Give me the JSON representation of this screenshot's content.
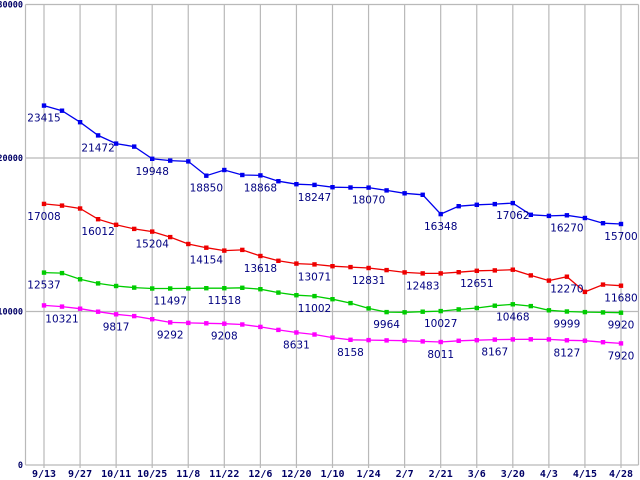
{
  "chart_data": {
    "type": "line",
    "title": "",
    "xlabel": "",
    "ylabel": "",
    "ylim": [
      0,
      30000
    ],
    "grid": "both",
    "legend": "none",
    "x_tick_labels": [
      "9/13",
      "9/27",
      "10/11",
      "10/25",
      "11/8",
      "11/22",
      "12/6",
      "12/20",
      "1/10",
      "1/24",
      "2/7",
      "2/21",
      "3/6",
      "3/20",
      "4/3",
      "4/15",
      "4/28"
    ],
    "points_between_ticks": 1,
    "y_ticks": [
      {
        "value": 0,
        "label": "0"
      },
      {
        "value": 10000,
        "label": "10000"
      },
      {
        "value": 20000,
        "label": "20000"
      },
      {
        "value": 30000,
        "label": "30000"
      }
    ],
    "series": [
      {
        "name": "series-blue",
        "color": "#0000ee",
        "values": [
          23415,
          23080,
          22330,
          21472,
          20940,
          20740,
          19948,
          19830,
          19780,
          18850,
          19220,
          18890,
          18868,
          18490,
          18290,
          18247,
          18100,
          18075,
          18070,
          17890,
          17700,
          17600,
          16348,
          16860,
          16950,
          17000,
          17062,
          16300,
          16230,
          16270,
          16090,
          15750,
          15700
        ],
        "point_labels": [
          [
            0,
            "23415"
          ],
          [
            3,
            "21472"
          ],
          [
            6,
            "19948"
          ],
          [
            9,
            "18850"
          ],
          [
            12,
            "18868"
          ],
          [
            15,
            "18247"
          ],
          [
            18,
            "18070"
          ],
          [
            22,
            "16348"
          ],
          [
            26,
            "17062"
          ],
          [
            29,
            "16270"
          ],
          [
            32,
            "15700"
          ]
        ]
      },
      {
        "name": "series-red",
        "color": "#ee0000",
        "values": [
          17008,
          16900,
          16710,
          16012,
          15650,
          15380,
          15204,
          14850,
          14400,
          14154,
          13970,
          14010,
          13618,
          13300,
          13120,
          13071,
          12950,
          12890,
          12831,
          12700,
          12550,
          12483,
          12480,
          12560,
          12651,
          12680,
          12720,
          12350,
          12010,
          12270,
          11280,
          11750,
          11680
        ],
        "point_labels": [
          [
            0,
            "17008"
          ],
          [
            3,
            "16012"
          ],
          [
            6,
            "15204"
          ],
          [
            9,
            "14154"
          ],
          [
            12,
            "13618"
          ],
          [
            15,
            "13071"
          ],
          [
            18,
            "12831"
          ],
          [
            21,
            "12483"
          ],
          [
            24,
            "12651"
          ],
          [
            29,
            "12270"
          ],
          [
            32,
            "11680"
          ]
        ]
      },
      {
        "name": "series-green",
        "color": "#00cc00",
        "values": [
          12537,
          12500,
          12100,
          11830,
          11660,
          11560,
          11500,
          11497,
          11505,
          11520,
          11518,
          11545,
          11450,
          11230,
          11060,
          11002,
          10800,
          10550,
          10200,
          9964,
          9950,
          9990,
          10027,
          10140,
          10230,
          10380,
          10468,
          10350,
          10080,
          9999,
          9960,
          9940,
          9920
        ],
        "point_labels": [
          [
            0,
            "12537"
          ],
          [
            7,
            "11497"
          ],
          [
            10,
            "11518"
          ],
          [
            15,
            "11002"
          ],
          [
            19,
            "9964"
          ],
          [
            22,
            "10027"
          ],
          [
            26,
            "10468"
          ],
          [
            29,
            "9999"
          ],
          [
            32,
            "9920"
          ]
        ]
      },
      {
        "name": "series-magenta",
        "color": "#ff00ff",
        "values": [
          10400,
          10321,
          10180,
          9990,
          9817,
          9700,
          9500,
          9292,
          9260,
          9230,
          9208,
          9150,
          9000,
          8800,
          8631,
          8500,
          8300,
          8158,
          8140,
          8120,
          8100,
          8050,
          8011,
          8090,
          8130,
          8167,
          8180,
          8190,
          8180,
          8127,
          8100,
          8000,
          7920
        ],
        "point_labels": [
          [
            1,
            "10321"
          ],
          [
            4,
            "9817"
          ],
          [
            7,
            "9292"
          ],
          [
            10,
            "9208"
          ],
          [
            14,
            "8631"
          ],
          [
            17,
            "8158"
          ],
          [
            22,
            "8011"
          ],
          [
            25,
            "8167"
          ],
          [
            29,
            "8127"
          ],
          [
            32,
            "7920"
          ]
        ]
      }
    ],
    "colors": {
      "background": "#ffffff",
      "gridline": "#b9b9b9",
      "point_label_text": "#000080",
      "axis_label_text": "#000066"
    }
  }
}
